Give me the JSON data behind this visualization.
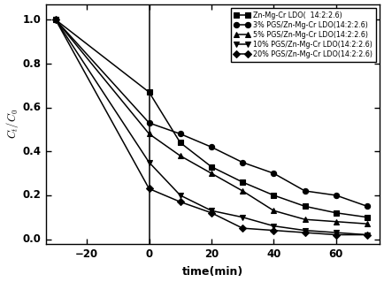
{
  "series": [
    {
      "label": "Zn-Mg-Cr LDO(  14:2:2.6)",
      "marker": "s",
      "x": [
        -30,
        0,
        10,
        20,
        30,
        40,
        50,
        60,
        70
      ],
      "y": [
        1.0,
        0.67,
        0.44,
        0.33,
        0.26,
        0.2,
        0.15,
        0.12,
        0.1
      ]
    },
    {
      "label": "3% PGS/Zn-Mg-Cr LDO(14:2:2.6)",
      "marker": "o",
      "x": [
        -30,
        0,
        10,
        20,
        30,
        40,
        50,
        60,
        70
      ],
      "y": [
        1.0,
        0.53,
        0.48,
        0.42,
        0.35,
        0.3,
        0.22,
        0.2,
        0.15
      ]
    },
    {
      "label": "5% PGS/Zn-Mg-Cr LDO(14:2:2.6)",
      "marker": "^",
      "x": [
        -30,
        0,
        10,
        20,
        30,
        40,
        50,
        60,
        70
      ],
      "y": [
        1.0,
        0.48,
        0.38,
        0.3,
        0.22,
        0.13,
        0.09,
        0.08,
        0.07
      ]
    },
    {
      "label": "10% PGS/Zn-Mg-Cr LDO(14:2:2.6)",
      "marker": "v",
      "x": [
        -30,
        0,
        10,
        20,
        30,
        40,
        50,
        60,
        70
      ],
      "y": [
        1.0,
        0.35,
        0.2,
        0.13,
        0.1,
        0.06,
        0.04,
        0.03,
        0.02
      ]
    },
    {
      "label": "20% PGS/Zn-Mg-Cr LDO(14:2:2.6)",
      "marker": "D",
      "x": [
        -30,
        0,
        10,
        20,
        30,
        40,
        50,
        60,
        70
      ],
      "y": [
        1.0,
        0.23,
        0.17,
        0.12,
        0.05,
        0.04,
        0.03,
        0.02,
        0.02
      ]
    }
  ],
  "xlabel": "time(min)",
  "ylabel": "$C_t/C_0$",
  "xlim": [
    -33,
    74
  ],
  "ylim": [
    -0.02,
    1.07
  ],
  "xticks": [
    -20,
    0,
    20,
    40,
    60
  ],
  "yticks": [
    0.0,
    0.2,
    0.4,
    0.6,
    0.8,
    1.0
  ],
  "line_color": "#000000",
  "vline_x": 0,
  "legend_fontsize": 5.8,
  "axis_fontsize": 9,
  "tick_fontsize": 8.5,
  "tick_fontweight": "bold"
}
